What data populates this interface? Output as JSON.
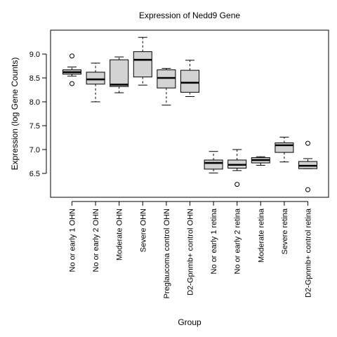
{
  "chart_data": {
    "type": "box",
    "title": "Expression of  Nedd9 Gene",
    "xlabel": "Group",
    "ylabel": "Expression (log Gene Counts)",
    "ylim": [
      6.0,
      9.5
    ],
    "yticks": [
      "6.5",
      "7.0",
      "7.5",
      "8.0",
      "8.5",
      "9.0"
    ],
    "categories": [
      "No or early 1 OHN",
      "No or early 2 OHN",
      "Moderate OHN",
      "Severe OHN",
      "Preglaucoma control OHN",
      "D2-Gpnmb+ control OHN",
      "No or early 1 retina",
      "No or early 2 retina",
      "Moderate retina",
      "Severe retina",
      "D2-Gpnmb+ control retina"
    ],
    "boxes": [
      {
        "min": 8.54,
        "q1": 8.58,
        "median": 8.62,
        "q3": 8.67,
        "max": 8.73,
        "outliers": [
          8.96,
          8.38
        ]
      },
      {
        "min": 8.0,
        "q1": 8.37,
        "median": 8.47,
        "q3": 8.62,
        "max": 8.81,
        "outliers": []
      },
      {
        "min": 8.19,
        "q1": 8.32,
        "median": 8.36,
        "q3": 8.88,
        "max": 8.94,
        "outliers": []
      },
      {
        "min": 8.35,
        "q1": 8.52,
        "median": 8.88,
        "q3": 9.05,
        "max": 9.35,
        "outliers": []
      },
      {
        "min": 7.93,
        "q1": 8.29,
        "median": 8.5,
        "q3": 8.67,
        "max": 8.7,
        "outliers": []
      },
      {
        "min": 8.11,
        "q1": 8.2,
        "median": 8.4,
        "q3": 8.66,
        "max": 8.87,
        "outliers": []
      },
      {
        "min": 6.51,
        "q1": 6.59,
        "median": 6.72,
        "q3": 6.78,
        "max": 6.96,
        "outliers": []
      },
      {
        "min": 6.56,
        "q1": 6.61,
        "median": 6.68,
        "q3": 6.78,
        "max": 7.0,
        "outliers": [
          6.27
        ]
      },
      {
        "min": 6.67,
        "q1": 6.72,
        "median": 6.78,
        "q3": 6.83,
        "max": 6.85,
        "outliers": []
      },
      {
        "min": 6.74,
        "q1": 6.94,
        "median": 7.09,
        "q3": 7.14,
        "max": 7.26,
        "outliers": []
      },
      {
        "min": 6.6,
        "q1": 6.6,
        "median": 6.66,
        "q3": 6.75,
        "max": 6.81,
        "outliers": [
          7.13,
          6.16
        ]
      }
    ],
    "box_fill": "#d3d3d3",
    "grid": false
  }
}
